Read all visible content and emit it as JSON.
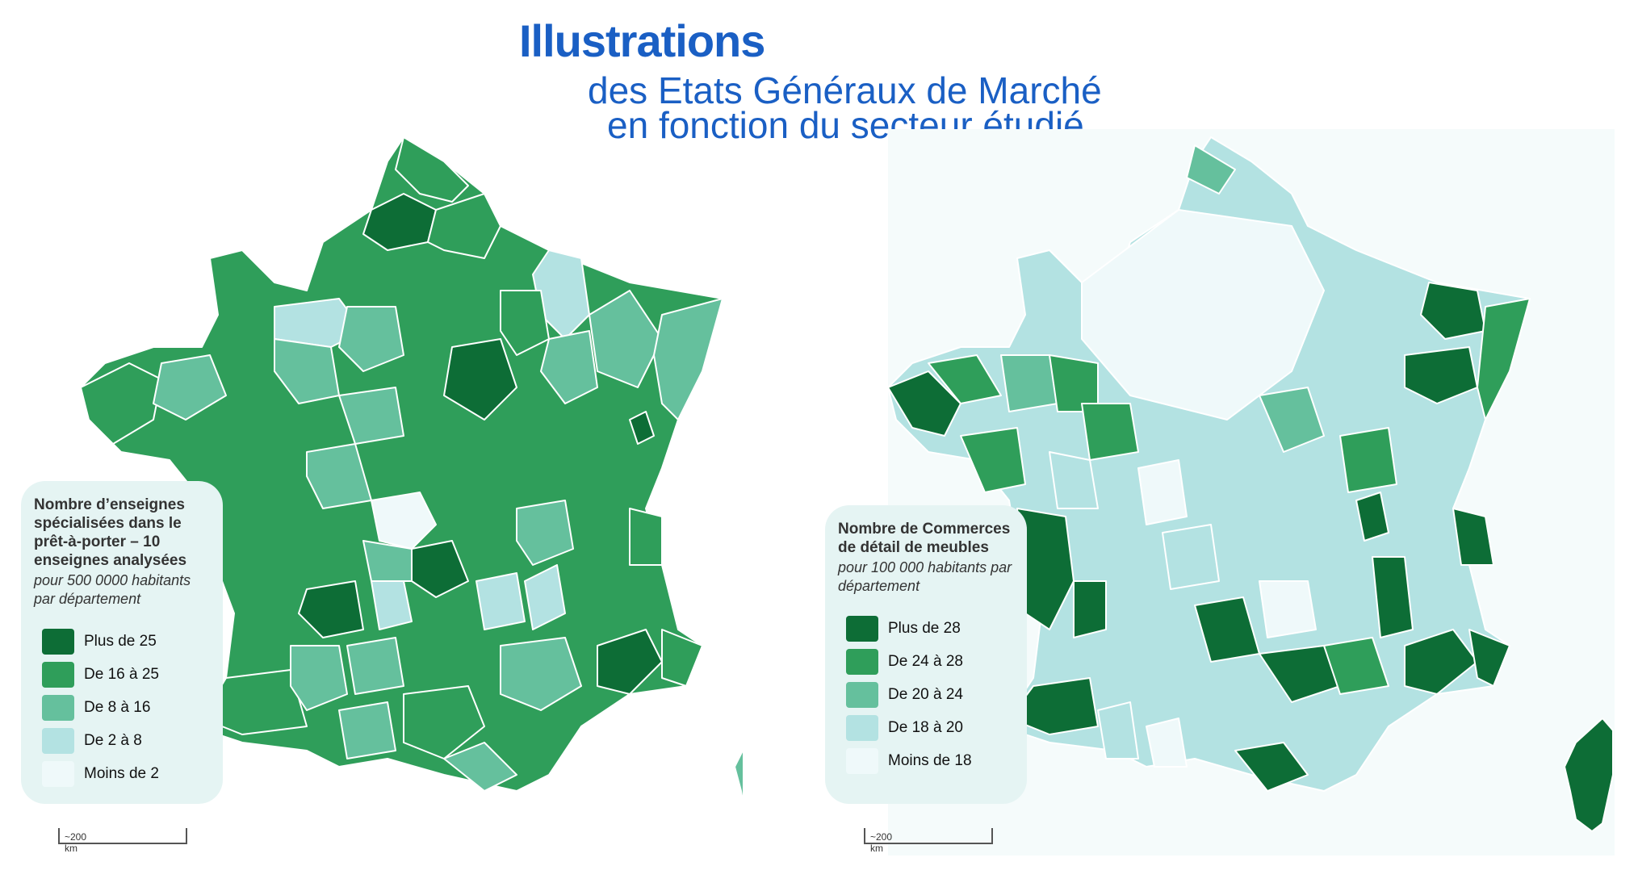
{
  "header": {
    "title": "Illustrations",
    "subtitle_line1": "des Etats Généraux de Marché",
    "subtitle_line2": "en fonction du secteur étudié"
  },
  "colors": {
    "class1": "#0d6d36",
    "class2": "#2f9e5a",
    "class3": "#65c09d",
    "class4": "#b3e2e2",
    "class5": "#eff9fa",
    "legend_bg": "#e5f4f3",
    "border": "#ffffff"
  },
  "maps": [
    {
      "legend": {
        "title": "Nombre d’enseignes spécialisées dans le prêt-à-porter – 10 enseignes analysées",
        "subtitle": "pour 500 0000 habitants par département",
        "items": [
          {
            "label": "Plus de 25",
            "class": 1
          },
          {
            "label": "De 16 à 25",
            "class": 2
          },
          {
            "label": "De 8 à 16",
            "class": 3
          },
          {
            "label": "De 2 à 8",
            "class": 4
          },
          {
            "label": "Moins de 2",
            "class": 5
          }
        ]
      },
      "scale_label": "~200 km"
    },
    {
      "legend": {
        "title": "Nombre de Commerces de détail de meubles",
        "subtitle": "pour 100 000 habitants par département",
        "items": [
          {
            "label": "Plus de 28",
            "class": 1
          },
          {
            "label": "De 24 à 28",
            "class": 2
          },
          {
            "label": "De 20 à 24",
            "class": 3
          },
          {
            "label": "De 18 à 20",
            "class": 4
          },
          {
            "label": "Moins de 18",
            "class": 5
          }
        ]
      },
      "scale_label": "~200 km"
    }
  ]
}
